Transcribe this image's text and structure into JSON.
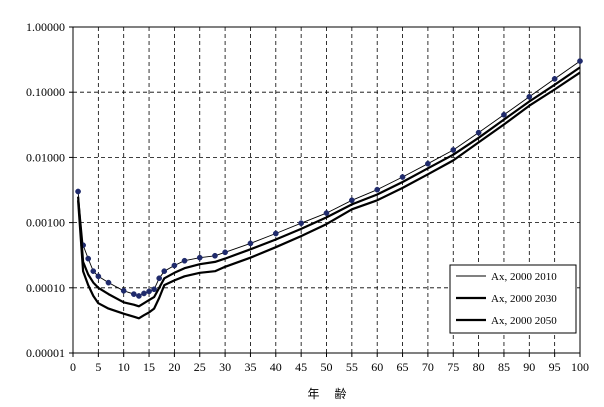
{
  "chart_data": {
    "type": "line",
    "title": "",
    "xlabel": "年 齢",
    "ylabel": "",
    "yscale": "log",
    "xlim": [
      0,
      100
    ],
    "ylim": [
      1e-05,
      1.0
    ],
    "x_ticks": [
      "0",
      "5",
      "10",
      "15",
      "20",
      "25",
      "30",
      "35",
      "40",
      "45",
      "50",
      "55",
      "60",
      "65",
      "70",
      "75",
      "80",
      "85",
      "90",
      "95",
      "100"
    ],
    "y_ticks": [
      "1.00000",
      "0.10000",
      "0.01000",
      "0.00100",
      "0.00010",
      "0.00001"
    ],
    "grid": "dashed",
    "legend_position": "bottom-right",
    "series": [
      {
        "name": "Ax, 2000 2010",
        "style": "thin-with-markers",
        "color": "#000000",
        "marker_color": "#1f2a6b",
        "points": [
          [
            1,
            0.003
          ],
          [
            2,
            0.00045
          ],
          [
            3,
            0.00028
          ],
          [
            4,
            0.00018
          ],
          [
            5,
            0.00015
          ],
          [
            7,
            0.00012
          ],
          [
            10,
            9e-05
          ],
          [
            12,
            8e-05
          ],
          [
            13,
            7.5e-05
          ],
          [
            14,
            8.2e-05
          ],
          [
            15,
            8.8e-05
          ],
          [
            16,
            9.5e-05
          ],
          [
            17,
            0.00014
          ],
          [
            18,
            0.00018
          ],
          [
            20,
            0.00022
          ],
          [
            22,
            0.00026
          ],
          [
            25,
            0.00029
          ],
          [
            28,
            0.00031
          ],
          [
            30,
            0.00035
          ],
          [
            35,
            0.00048
          ],
          [
            40,
            0.00068
          ],
          [
            45,
            0.00098
          ],
          [
            50,
            0.0014
          ],
          [
            55,
            0.0022
          ],
          [
            60,
            0.0032
          ],
          [
            65,
            0.005
          ],
          [
            70,
            0.008
          ],
          [
            75,
            0.013
          ],
          [
            80,
            0.024
          ],
          [
            85,
            0.045
          ],
          [
            90,
            0.085
          ],
          [
            95,
            0.16
          ],
          [
            100,
            0.3
          ]
        ]
      },
      {
        "name": "Ax, 2000 2030",
        "style": "thick",
        "color": "#000000",
        "points": [
          [
            1,
            0.0025
          ],
          [
            2,
            0.00025
          ],
          [
            3,
            0.00016
          ],
          [
            4,
            0.00012
          ],
          [
            5,
            0.0001
          ],
          [
            7,
            8e-05
          ],
          [
            10,
            6e-05
          ],
          [
            12,
            5.5e-05
          ],
          [
            13,
            5.2e-05
          ],
          [
            14,
            5.8e-05
          ],
          [
            15,
            6.5e-05
          ],
          [
            16,
            7.2e-05
          ],
          [
            17,
            0.0001
          ],
          [
            18,
            0.00014
          ],
          [
            20,
            0.00017
          ],
          [
            22,
            0.0002
          ],
          [
            25,
            0.00023
          ],
          [
            28,
            0.00025
          ],
          [
            30,
            0.00028
          ],
          [
            35,
            0.00039
          ],
          [
            40,
            0.00055
          ],
          [
            45,
            0.0008
          ],
          [
            50,
            0.0012
          ],
          [
            55,
            0.0019
          ],
          [
            60,
            0.0027
          ],
          [
            65,
            0.0042
          ],
          [
            70,
            0.0068
          ],
          [
            75,
            0.011
          ],
          [
            80,
            0.02
          ],
          [
            85,
            0.038
          ],
          [
            90,
            0.072
          ],
          [
            95,
            0.13
          ],
          [
            100,
            0.24
          ]
        ]
      },
      {
        "name": "Ax, 2000 2050",
        "style": "thick",
        "color": "#000000",
        "points": [
          [
            1,
            0.0022
          ],
          [
            2,
            0.00018
          ],
          [
            3,
            0.00011
          ],
          [
            4,
            7.5e-05
          ],
          [
            5,
            5.8e-05
          ],
          [
            7,
            4.8e-05
          ],
          [
            10,
            4e-05
          ],
          [
            12,
            3.6e-05
          ],
          [
            13,
            3.4e-05
          ],
          [
            14,
            3.8e-05
          ],
          [
            15,
            4.2e-05
          ],
          [
            16,
            4.8e-05
          ],
          [
            17,
            7e-05
          ],
          [
            18,
            0.00011
          ],
          [
            20,
            0.00013
          ],
          [
            22,
            0.00015
          ],
          [
            25,
            0.00017
          ],
          [
            28,
            0.00018
          ],
          [
            30,
            0.00021
          ],
          [
            35,
            0.00029
          ],
          [
            40,
            0.00042
          ],
          [
            45,
            0.00062
          ],
          [
            50,
            0.00095
          ],
          [
            55,
            0.0016
          ],
          [
            60,
            0.0022
          ],
          [
            65,
            0.0034
          ],
          [
            70,
            0.0055
          ],
          [
            75,
            0.009
          ],
          [
            80,
            0.017
          ],
          [
            85,
            0.032
          ],
          [
            90,
            0.062
          ],
          [
            95,
            0.11
          ],
          [
            100,
            0.2
          ]
        ]
      }
    ]
  }
}
